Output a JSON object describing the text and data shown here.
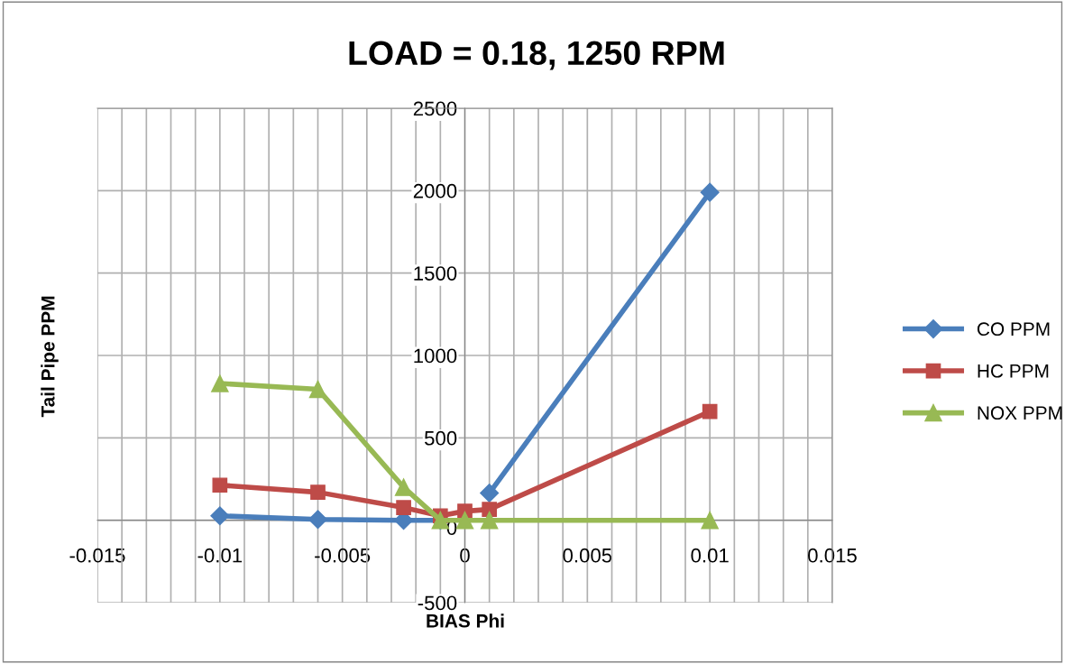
{
  "chart_data": {
    "type": "line",
    "title": "LOAD = 0.18, 1250 RPM",
    "xlabel": "BIAS Phi",
    "ylabel": "Tail Pipe PPM",
    "x": [
      -0.01,
      -0.006,
      -0.0025,
      -0.001,
      0,
      0.001,
      0.01
    ],
    "series": [
      {
        "name": "CO PPM",
        "color": "#4a7ebb",
        "marker": "diamond",
        "values": [
          27,
          5,
          0,
          0,
          null,
          165,
          1990
        ]
      },
      {
        "name": "HC PPM",
        "color": "#be4b48",
        "marker": "square",
        "values": [
          213,
          170,
          77,
          27,
          55,
          66,
          660
        ]
      },
      {
        "name": "NOX PPM",
        "color": "#98b954",
        "marker": "triangle",
        "values": [
          830,
          795,
          200,
          0,
          0,
          0,
          0
        ]
      }
    ],
    "xlim": [
      -0.015,
      0.015
    ],
    "xticks": [
      -0.015,
      {
        "value": -0.014,
        "label": null
      },
      {
        "value": -0.013,
        "label": null
      },
      {
        "value": -0.012,
        "label": null
      },
      {
        "value": -0.011,
        "label": null
      },
      -0.01,
      {
        "value": -0.009,
        "label": null
      },
      {
        "value": -0.008,
        "label": null
      },
      {
        "value": -0.007,
        "label": null
      },
      {
        "value": -0.006,
        "label": null
      },
      -0.005,
      {
        "value": -0.004,
        "label": null
      },
      {
        "value": -0.003,
        "label": null
      },
      {
        "value": -0.002,
        "label": null
      },
      {
        "value": -0.001,
        "label": null
      },
      0,
      {
        "value": 0.001,
        "label": null
      },
      {
        "value": 0.002,
        "label": null
      },
      {
        "value": 0.003,
        "label": null
      },
      {
        "value": 0.004,
        "label": null
      },
      0.005,
      {
        "value": 0.006,
        "label": null
      },
      {
        "value": 0.007,
        "label": null
      },
      {
        "value": 0.008,
        "label": null
      },
      {
        "value": 0.009,
        "label": null
      },
      0.01,
      {
        "value": 0.011,
        "label": null
      },
      {
        "value": 0.012,
        "label": null
      },
      {
        "value": 0.013,
        "label": null
      },
      {
        "value": 0.014,
        "label": null
      },
      0.015
    ],
    "ylim": [
      -500,
      2500
    ],
    "yticks": [
      -500,
      0,
      500,
      1000,
      1500,
      2000,
      2500
    ],
    "grid": true,
    "legend": "right",
    "line_style": "solid"
  }
}
